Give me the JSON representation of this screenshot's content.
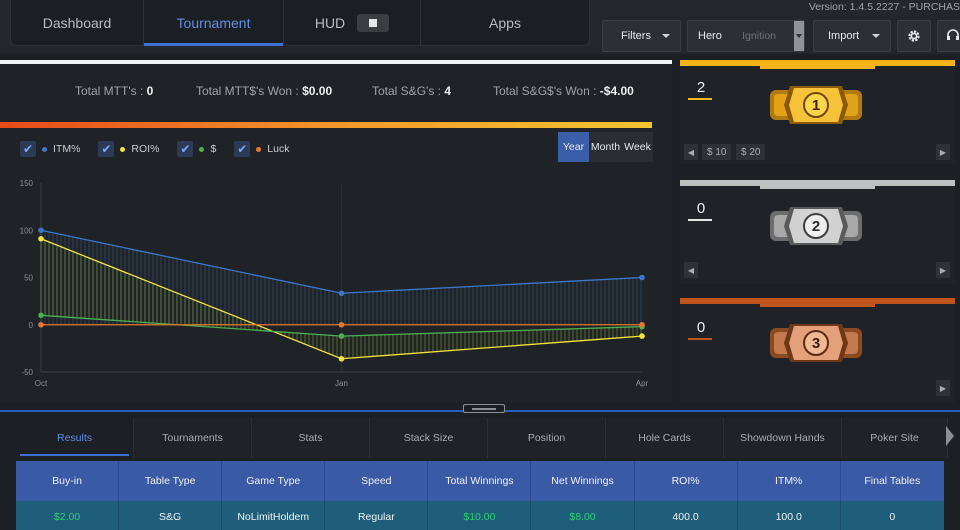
{
  "app": {
    "version": "Version: 1.4.5.2227 - PURCHAS"
  },
  "nav": {
    "tabs": [
      {
        "label": "Dashboard"
      },
      {
        "label": "Tournament"
      },
      {
        "label": "HUD"
      },
      {
        "label": "Apps"
      }
    ]
  },
  "toolbar": {
    "filters_label": "Filters",
    "hero_label": "Hero",
    "hero_site": "Ignition",
    "import_label": "Import"
  },
  "totals": {
    "mtt_label": "Total MTT's :",
    "mtt_value": "0",
    "mtt_won_label": "Total MTT$'s Won :",
    "mtt_won_value": "$0.00",
    "sng_label": "Total S&G's :",
    "sng_value": "4",
    "sng_won_label": "Total S&G$'s Won :",
    "sng_won_value": "-$4.00"
  },
  "legend": [
    {
      "label": "ITM%",
      "color": "#3b78c9"
    },
    {
      "label": "ROI%",
      "color": "#f1e43a"
    },
    {
      "label": "$",
      "color": "#4caf50"
    },
    {
      "label": "Luck",
      "color": "#e57a2e"
    }
  ],
  "period": {
    "year": "Year",
    "month": "Month",
    "week": "Week"
  },
  "colors": {
    "accent": "#3b6fd4",
    "gold": "#f4b41a",
    "silver": "#bfbfbf",
    "bronze": "#c0561e",
    "money": "#2ecc71"
  },
  "chart_data": {
    "type": "line",
    "x": [
      "Oct",
      "Jan",
      "Apr"
    ],
    "ylim": [
      -50,
      150
    ],
    "yticks": [
      "150",
      "100",
      "50",
      "0",
      "-50"
    ],
    "series": [
      {
        "name": "ITM%",
        "values": [
          100,
          33.3,
          50
        ]
      },
      {
        "name": "ROI%",
        "values": [
          91,
          -36,
          -12
        ]
      },
      {
        "name": "$",
        "values": [
          10,
          -12,
          -2
        ]
      },
      {
        "name": "Luck",
        "values": [
          0,
          0,
          0
        ]
      }
    ]
  },
  "cards": [
    {
      "count": "2",
      "rank": "1",
      "chips": [
        "$ 10",
        "$ 20"
      ]
    },
    {
      "count": "0",
      "rank": "2"
    },
    {
      "count": "0",
      "rank": "3"
    }
  ],
  "bottom_tabs": [
    "Results",
    "Tournaments",
    "Stats",
    "Stack Size",
    "Position",
    "Hole Cards",
    "Showdown Hands",
    "Poker Site"
  ],
  "table": {
    "headers": [
      "Buy-in",
      "Table Type",
      "Game Type",
      "Speed",
      "Total Winnings",
      "Net Winnings",
      "ROI%",
      "ITM%",
      "Final Tables"
    ],
    "row": [
      "$2.00",
      "S&G",
      "NoLimitHoldem",
      "Regular",
      "$10.00",
      "$8.00",
      "400.0",
      "100.0",
      "0"
    ]
  }
}
